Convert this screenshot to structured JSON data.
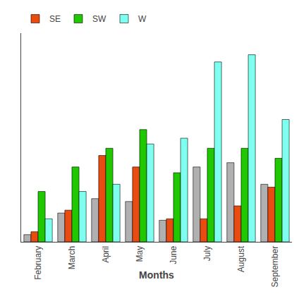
{
  "chart_data": {
    "type": "bar",
    "xlabel": "Months",
    "categories": [
      "February",
      "March",
      "April",
      "May",
      "June",
      "July",
      "August",
      "September"
    ],
    "series": [
      {
        "color": "#b0b0b0",
        "values": [
          5,
          20,
          30,
          28,
          15,
          52,
          55,
          40
        ]
      },
      {
        "name": "SE",
        "color": "#e84c0e",
        "values": [
          7,
          22,
          60,
          52,
          16,
          16,
          25,
          38
        ]
      },
      {
        "name": "SW",
        "color": "#1fc800",
        "values": [
          35,
          52,
          65,
          78,
          48,
          65,
          65,
          58
        ]
      },
      {
        "name": "W",
        "color": "#7fffef",
        "values": [
          16,
          35,
          40,
          68,
          72,
          125,
          130,
          85
        ]
      }
    ],
    "ylim": [
      0,
      145
    ],
    "grid": false,
    "legend": "upper left",
    "tick_labels": "x"
  }
}
